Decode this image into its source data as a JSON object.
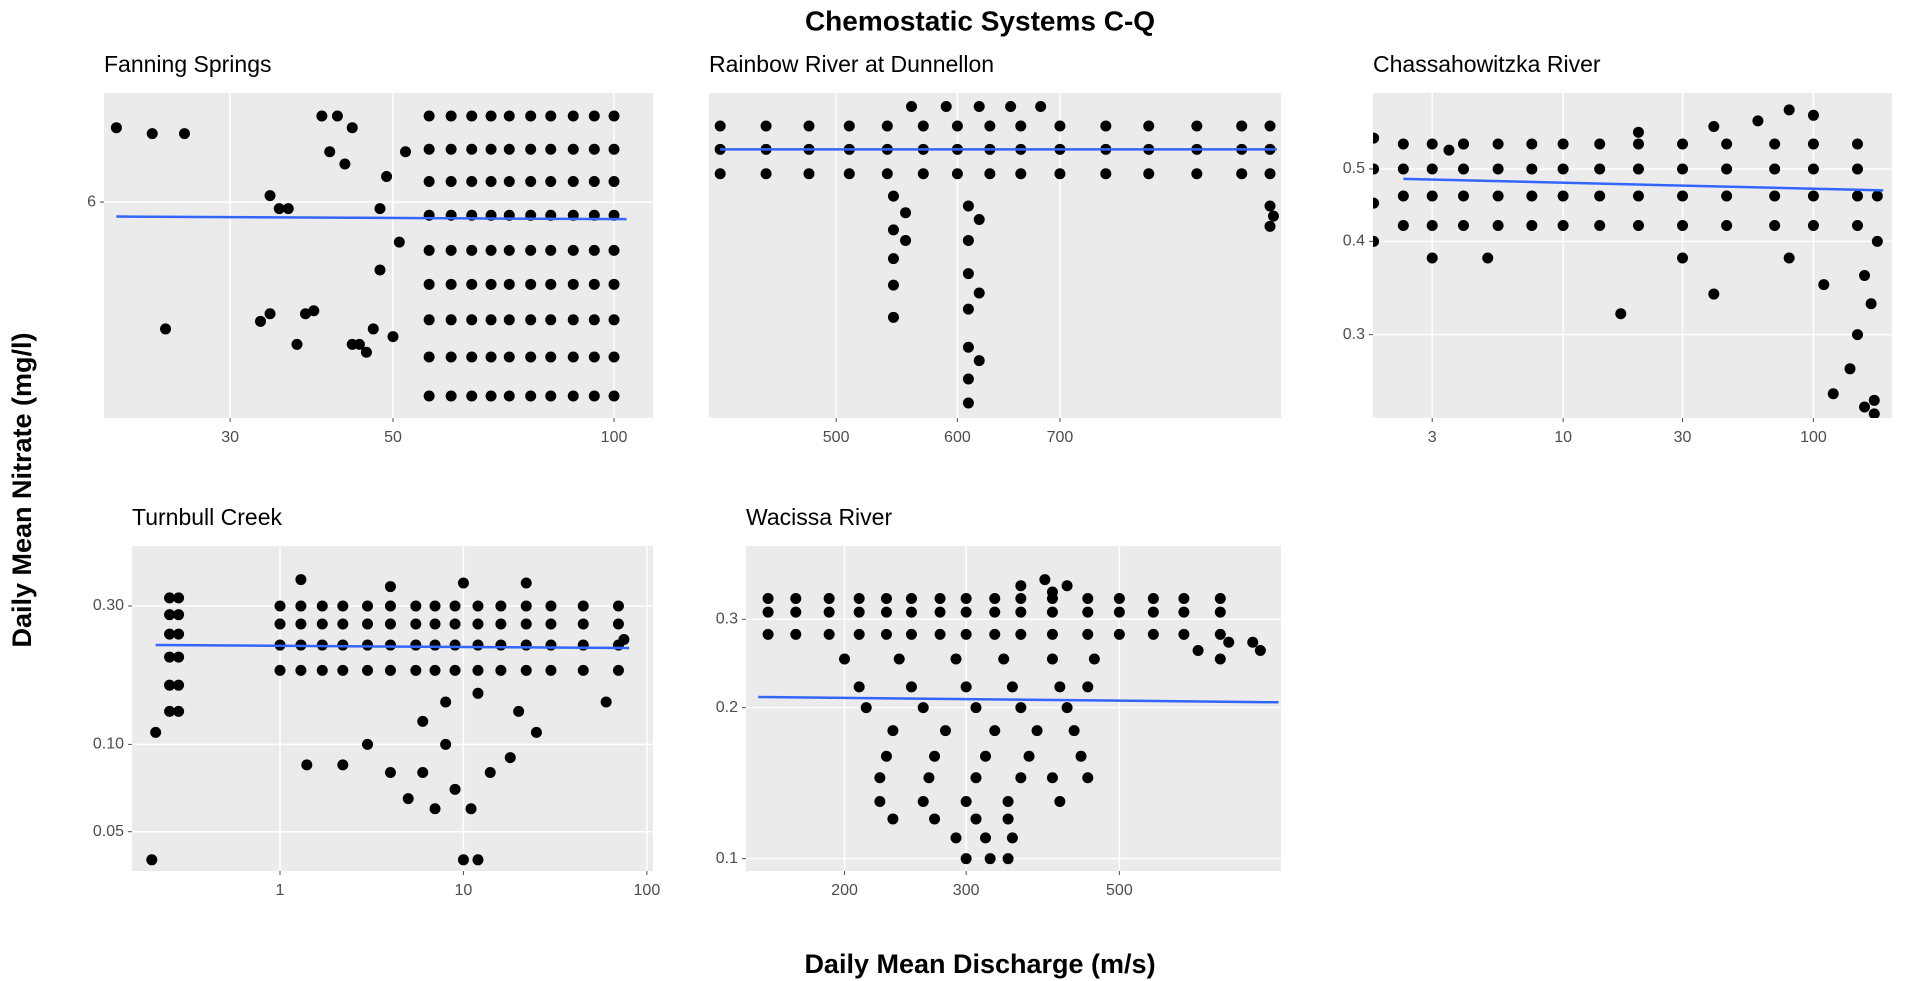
{
  "title": "Chemostatic Systems C-Q",
  "x_label": "Daily Mean Discharge (m/s)",
  "y_label": "Daily Mean Nitrate (mg/l)",
  "chart_data": [
    {
      "type": "scatter",
      "title": "Fanning Springs",
      "color": "#000000",
      "log_x": true,
      "log_y": true,
      "grid": true,
      "xlim": [
        20.2,
        113
      ],
      "ylim": [
        4.55,
        6.9
      ],
      "xticks": [
        30,
        50,
        100
      ],
      "yticks": [
        6
      ],
      "x": [
        21,
        23.5,
        26,
        24.5,
        34,
        35,
        36,
        33,
        34,
        37,
        38,
        39,
        40,
        42,
        44,
        41,
        43,
        45,
        46,
        47,
        44,
        48,
        49,
        48,
        50,
        51,
        52,
        56,
        60,
        64,
        68,
        72,
        77,
        82,
        88,
        94,
        100,
        56,
        60,
        64,
        68,
        72,
        77,
        82,
        88,
        94,
        100,
        56,
        60,
        64,
        68,
        72,
        77,
        82,
        88,
        94,
        100,
        56,
        60,
        64,
        68,
        72,
        77,
        82,
        88,
        94,
        100,
        56,
        60,
        64,
        68,
        72,
        77,
        82,
        88,
        94,
        100,
        56,
        60,
        64,
        68,
        72,
        77,
        82,
        88,
        94,
        100,
        56,
        60,
        64,
        68,
        72,
        77,
        82,
        88,
        94,
        100,
        56,
        60,
        64,
        68,
        72,
        77,
        82,
        88,
        94,
        100,
        56,
        60,
        64,
        68,
        72,
        77,
        82,
        88,
        94,
        100
      ],
      "values": [
        6.6,
        6.55,
        6.55,
        5.1,
        6.05,
        5.95,
        5.95,
        5.15,
        5.2,
        5.0,
        5.2,
        5.22,
        6.7,
        6.7,
        6.6,
        6.4,
        6.3,
        5.0,
        4.95,
        5.1,
        5.0,
        5.95,
        6.2,
        5.5,
        5.05,
        5.7,
        6.4,
        4.68,
        4.68,
        4.68,
        4.68,
        4.68,
        4.68,
        4.68,
        4.68,
        4.68,
        4.68,
        4.92,
        4.92,
        4.92,
        4.92,
        4.92,
        4.92,
        4.92,
        4.92,
        4.92,
        4.92,
        5.16,
        5.16,
        5.16,
        5.16,
        5.16,
        5.16,
        5.16,
        5.16,
        5.16,
        5.16,
        5.4,
        5.4,
        5.4,
        5.4,
        5.4,
        5.4,
        5.4,
        5.4,
        5.4,
        5.4,
        5.64,
        5.64,
        5.64,
        5.64,
        5.64,
        5.64,
        5.64,
        5.64,
        5.64,
        5.64,
        5.9,
        5.9,
        5.9,
        5.9,
        5.9,
        5.9,
        5.9,
        5.9,
        5.9,
        5.9,
        6.16,
        6.16,
        6.16,
        6.16,
        6.16,
        6.16,
        6.16,
        6.16,
        6.16,
        6.16,
        6.42,
        6.42,
        6.42,
        6.42,
        6.42,
        6.42,
        6.42,
        6.42,
        6.42,
        6.42,
        6.7,
        6.7,
        6.7,
        6.7,
        6.7,
        6.7,
        6.7,
        6.7,
        6.7,
        6.7
      ],
      "fit": {
        "x": [
          21,
          104
        ],
        "values": [
          5.89,
          5.87
        ],
        "color": "#3366ff"
      }
    },
    {
      "type": "scatter",
      "title": "Rainbow River at Dunnellon",
      "color": "#000000",
      "log_x": true,
      "log_y": true,
      "grid": true,
      "xlim": [
        413,
        976
      ],
      "ylim": [
        1.0,
        1.9
      ],
      "xticks": [
        500,
        600,
        700
      ],
      "yticks": [],
      "x": [
        420,
        450,
        480,
        510,
        540,
        570,
        600,
        630,
        660,
        700,
        750,
        800,
        860,
        920,
        960,
        420,
        450,
        480,
        510,
        540,
        570,
        600,
        630,
        660,
        700,
        750,
        800,
        860,
        920,
        960,
        420,
        450,
        480,
        510,
        540,
        570,
        600,
        630,
        660,
        700,
        750,
        800,
        860,
        920,
        960,
        560,
        590,
        620,
        650,
        680,
        545,
        545,
        545,
        545,
        545,
        555,
        555,
        610,
        610,
        610,
        610,
        610,
        610,
        610,
        620,
        620,
        620,
        960,
        960,
        965
      ],
      "values": [
        1.62,
        1.62,
        1.62,
        1.62,
        1.62,
        1.62,
        1.62,
        1.62,
        1.62,
        1.62,
        1.62,
        1.62,
        1.62,
        1.62,
        1.62,
        1.7,
        1.7,
        1.7,
        1.7,
        1.7,
        1.7,
        1.7,
        1.7,
        1.7,
        1.7,
        1.7,
        1.7,
        1.7,
        1.7,
        1.7,
        1.78,
        1.78,
        1.78,
        1.78,
        1.78,
        1.78,
        1.78,
        1.78,
        1.78,
        1.78,
        1.78,
        1.78,
        1.78,
        1.78,
        1.78,
        1.85,
        1.85,
        1.85,
        1.85,
        1.85,
        1.55,
        1.45,
        1.37,
        1.3,
        1.22,
        1.5,
        1.42,
        1.52,
        1.42,
        1.33,
        1.24,
        1.15,
        1.08,
        1.03,
        1.48,
        1.28,
        1.12,
        1.52,
        1.46,
        1.49
      ],
      "fit": {
        "x": [
          420,
          970
        ],
        "values": [
          1.7,
          1.7
        ],
        "color": "#3366ff"
      }
    },
    {
      "type": "scatter",
      "title": "Chassahowitzka River",
      "color": "#000000",
      "log_x": true,
      "log_y": true,
      "grid": true,
      "xlim": [
        1.74,
        206
      ],
      "ylim": [
        0.232,
        0.632
      ],
      "xticks": [
        3,
        10,
        30,
        100
      ],
      "yticks": [
        0.3,
        0.4,
        0.5
      ],
      "x": [
        2.3,
        3,
        4,
        5.5,
        7.5,
        10,
        14,
        20,
        30,
        45,
        70,
        100,
        150,
        2.3,
        3,
        4,
        5.5,
        7.5,
        10,
        14,
        20,
        30,
        45,
        70,
        100,
        150,
        2.3,
        3,
        4,
        5.5,
        7.5,
        10,
        14,
        20,
        30,
        45,
        70,
        100,
        150,
        2.3,
        3,
        4,
        5.5,
        7.5,
        10,
        14,
        20,
        30,
        45,
        70,
        100,
        150,
        1.75,
        1.75,
        1.75,
        1.75,
        60,
        80,
        100,
        40,
        20,
        160,
        170,
        150,
        140,
        120,
        160,
        175,
        175,
        17,
        40,
        110,
        3,
        5,
        30,
        80,
        180,
        180,
        4,
        3.5
      ],
      "values": [
        0.42,
        0.42,
        0.42,
        0.42,
        0.42,
        0.42,
        0.42,
        0.42,
        0.42,
        0.42,
        0.42,
        0.42,
        0.42,
        0.46,
        0.46,
        0.46,
        0.46,
        0.46,
        0.46,
        0.46,
        0.46,
        0.46,
        0.46,
        0.46,
        0.46,
        0.46,
        0.5,
        0.5,
        0.5,
        0.5,
        0.5,
        0.5,
        0.5,
        0.5,
        0.5,
        0.5,
        0.5,
        0.5,
        0.5,
        0.54,
        0.54,
        0.54,
        0.54,
        0.54,
        0.54,
        0.54,
        0.54,
        0.54,
        0.54,
        0.54,
        0.54,
        0.54,
        0.4,
        0.45,
        0.5,
        0.55,
        0.58,
        0.6,
        0.59,
        0.57,
        0.56,
        0.36,
        0.33,
        0.3,
        0.27,
        0.25,
        0.24,
        0.245,
        0.235,
        0.32,
        0.34,
        0.35,
        0.38,
        0.38,
        0.38,
        0.38,
        0.4,
        0.46,
        0.54,
        0.53
      ],
      "fit": {
        "x": [
          2.3,
          190
        ],
        "values": [
          0.485,
          0.468
        ],
        "color": "#3366ff"
      }
    },
    {
      "type": "scatter",
      "title": "Turnbull Creek",
      "color": "#000000",
      "log_x": true,
      "log_y": true,
      "grid": true,
      "xlim": [
        0.156,
        108
      ],
      "ylim": [
        0.0366,
        0.483
      ],
      "xticks": [
        1,
        10,
        100
      ],
      "yticks": [
        {
          "value": 0.05,
          "label": "0.05"
        },
        {
          "value": 0.1,
          "label": "0.10"
        },
        {
          "value": 0.3,
          "label": "0.30"
        }
      ],
      "x": [
        0.25,
        0.28,
        0.25,
        0.28,
        0.25,
        0.28,
        0.25,
        0.28,
        0.25,
        0.28,
        0.25,
        0.28,
        0.21,
        0.2,
        1,
        1.3,
        1.7,
        2.2,
        3,
        4,
        5.5,
        7,
        9,
        12,
        16,
        22,
        30,
        45,
        70,
        1,
        1.3,
        1.7,
        2.2,
        3,
        4,
        5.5,
        7,
        9,
        12,
        16,
        22,
        30,
        45,
        70,
        1,
        1.3,
        1.7,
        2.2,
        3,
        4,
        5.5,
        7,
        9,
        12,
        16,
        22,
        30,
        45,
        70,
        1,
        1.3,
        1.7,
        2.2,
        3,
        4,
        5.5,
        7,
        9,
        12,
        16,
        22,
        30,
        45,
        70,
        1.4,
        2.2,
        3,
        4,
        5,
        6,
        7,
        8,
        9,
        10,
        12,
        11,
        14,
        18,
        25,
        20,
        6,
        8,
        12,
        60,
        75,
        22,
        10,
        1.3,
        4
      ],
      "values": [
        0.13,
        0.13,
        0.16,
        0.16,
        0.2,
        0.2,
        0.24,
        0.24,
        0.28,
        0.28,
        0.32,
        0.32,
        0.11,
        0.04,
        0.18,
        0.18,
        0.18,
        0.18,
        0.18,
        0.18,
        0.18,
        0.18,
        0.18,
        0.18,
        0.18,
        0.18,
        0.18,
        0.18,
        0.18,
        0.22,
        0.22,
        0.22,
        0.22,
        0.22,
        0.22,
        0.22,
        0.22,
        0.22,
        0.22,
        0.22,
        0.22,
        0.22,
        0.22,
        0.22,
        0.26,
        0.26,
        0.26,
        0.26,
        0.26,
        0.26,
        0.26,
        0.26,
        0.26,
        0.26,
        0.26,
        0.26,
        0.26,
        0.26,
        0.26,
        0.3,
        0.3,
        0.3,
        0.3,
        0.3,
        0.3,
        0.3,
        0.3,
        0.3,
        0.3,
        0.3,
        0.3,
        0.3,
        0.3,
        0.3,
        0.085,
        0.085,
        0.1,
        0.08,
        0.065,
        0.08,
        0.06,
        0.1,
        0.07,
        0.04,
        0.04,
        0.06,
        0.08,
        0.09,
        0.11,
        0.13,
        0.12,
        0.14,
        0.15,
        0.14,
        0.23,
        0.36,
        0.36,
        0.37,
        0.35
      ],
      "fit": {
        "x": [
          0.21,
          80
        ],
        "values": [
          0.22,
          0.215
        ],
        "color": "#3366ff"
      }
    },
    {
      "type": "scatter",
      "title": "Wacissa River",
      "color": "#000000",
      "log_x": true,
      "log_y": true,
      "grid": true,
      "xlim": [
        144,
        857
      ],
      "ylim": [
        0.0945,
        0.42
      ],
      "xticks": [
        200,
        300,
        500
      ],
      "yticks": [
        0.1,
        0.2,
        0.3
      ],
      "x": [
        155,
        170,
        190,
        210,
        230,
        250,
        275,
        300,
        330,
        360,
        400,
        450,
        500,
        560,
        620,
        700,
        155,
        170,
        190,
        210,
        230,
        250,
        275,
        300,
        330,
        360,
        400,
        450,
        500,
        560,
        620,
        700,
        155,
        170,
        190,
        210,
        230,
        250,
        275,
        300,
        330,
        360,
        400,
        450,
        500,
        560,
        620,
        700,
        650,
        720,
        780,
        800,
        700,
        360,
        390,
        420,
        400,
        200,
        240,
        290,
        340,
        400,
        460,
        210,
        250,
        300,
        350,
        410,
        450,
        215,
        260,
        310,
        360,
        420,
        235,
        280,
        330,
        380,
        430,
        230,
        270,
        320,
        370,
        440,
        225,
        265,
        310,
        360,
        400,
        450,
        225,
        260,
        300,
        345,
        410,
        235,
        270,
        310,
        345,
        290,
        320,
        350,
        300,
        325,
        345
      ],
      "values": [
        0.28,
        0.28,
        0.28,
        0.28,
        0.28,
        0.28,
        0.28,
        0.28,
        0.28,
        0.28,
        0.28,
        0.28,
        0.28,
        0.28,
        0.28,
        0.28,
        0.31,
        0.31,
        0.31,
        0.31,
        0.31,
        0.31,
        0.31,
        0.31,
        0.31,
        0.31,
        0.31,
        0.31,
        0.31,
        0.31,
        0.31,
        0.31,
        0.33,
        0.33,
        0.33,
        0.33,
        0.33,
        0.33,
        0.33,
        0.33,
        0.33,
        0.33,
        0.33,
        0.33,
        0.33,
        0.33,
        0.33,
        0.33,
        0.26,
        0.27,
        0.27,
        0.26,
        0.25,
        0.35,
        0.36,
        0.35,
        0.34,
        0.25,
        0.25,
        0.25,
        0.25,
        0.25,
        0.25,
        0.22,
        0.22,
        0.22,
        0.22,
        0.22,
        0.22,
        0.2,
        0.2,
        0.2,
        0.2,
        0.2,
        0.18,
        0.18,
        0.18,
        0.18,
        0.18,
        0.16,
        0.16,
        0.16,
        0.16,
        0.16,
        0.145,
        0.145,
        0.145,
        0.145,
        0.145,
        0.145,
        0.13,
        0.13,
        0.13,
        0.13,
        0.13,
        0.12,
        0.12,
        0.12,
        0.12,
        0.11,
        0.11,
        0.11,
        0.1,
        0.1,
        0.1
      ],
      "fit": {
        "x": [
          150,
          850
        ],
        "values": [
          0.21,
          0.205
        ],
        "color": "#3366ff"
      }
    }
  ]
}
